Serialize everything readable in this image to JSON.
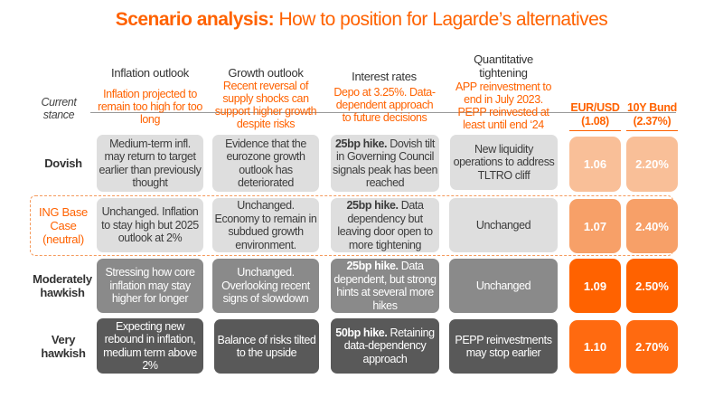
{
  "title": {
    "bold": "Scenario analysis:",
    "rest": " How to position for Lagarde’s alternatives"
  },
  "columns": [
    "Inflation outlook",
    "Growth outlook",
    "Interest rates",
    "Quantitative tightening"
  ],
  "current_stance": {
    "label": "Current stance",
    "values": [
      "Inflation projected to remain too high for too long",
      "Recent reversal of supply shocks can support higher growth despite risks",
      "Depo at 3.25%. Data-dependent approach to future decisions",
      "APP reinvestment to end in July 2023. PEPP reinvested at least until end ‘24"
    ],
    "eurusd": "EUR/USD (1.08)",
    "bund": "10Y Bund (2.37%)"
  },
  "rows": [
    {
      "label": "Dovish",
      "inflation": "Medium-term infl. may return to target earlier than previously thought",
      "growth": "Evidence that the eurozone growth outlook has deteriorated",
      "rates_bold": "25bp hike.",
      "rates": " Dovish tilt in Governing Council signals peak has been reached",
      "qt": "New liquidity operations to address TLTRO cliff",
      "eurusd": "1.06",
      "bund": "2.20%",
      "color": "#f9bf98"
    },
    {
      "label": "ING Base Case (neutral)",
      "inflation": "Unchanged. Inflation to stay high but 2025 outlook at 2%",
      "growth": "Unchanged. Economy to remain in subdued growth environment.",
      "rates_bold": "25bp hike.",
      "rates": " Data dependency but leaving door open to more tightening",
      "qt": "Unchanged",
      "eurusd": "1.07",
      "bund": "2.40%",
      "color": "#f7a068"
    },
    {
      "label": "Moderately hawkish",
      "inflation": "Stressing how core inflation may stay higher for longer",
      "growth": "Unchanged. Overlooking recent signs of slowdown",
      "rates_bold": "25bp hike.",
      "rates": " Data dependent, but strong hints at several more hikes",
      "qt": "Unchanged",
      "eurusd": "1.09",
      "bund": "2.50%",
      "color": "#ff6200"
    },
    {
      "label": "Very hawkish",
      "inflation": "Expecting new rebound in inflation, medium term above 2%",
      "growth": "Balance of risks tilted to the upside",
      "rates_bold": "50bp hike.",
      "rates": " Retaining data-dependency approach",
      "qt": "PEPP reinvestments may stop earlier",
      "eurusd": "1.10",
      "bund": "2.70%",
      "color": "#ff6a10"
    }
  ]
}
